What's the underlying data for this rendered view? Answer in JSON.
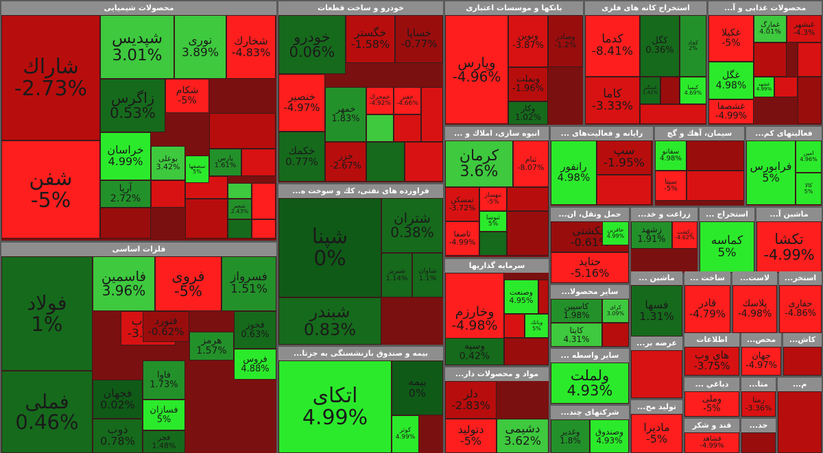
{
  "chart_data": {
    "type": "treemap",
    "title": "",
    "sectors": [
      {
        "name": "محصولات شیمیایی",
        "tiles": [
          {
            "symbol": "شاراك",
            "change": -2.73
          },
          {
            "symbol": "شپدیس",
            "change": 3.01
          },
          {
            "symbol": "نوری",
            "change": 3.89
          },
          {
            "symbol": "شخارك",
            "change": -4.83
          },
          {
            "symbol": "شفن",
            "change": -5
          },
          {
            "symbol": "زاگرس",
            "change": 0.53
          },
          {
            "symbol": "شکام",
            "change": -5
          },
          {
            "symbol": "خراسان",
            "change": 4.99
          },
          {
            "symbol": "بوعلی",
            "change": 3.42
          },
          {
            "symbol": "آریا",
            "change": 2.72
          },
          {
            "symbol": "پارس",
            "change": 1.61
          },
          {
            "symbol": "شجم",
            "change": 2.43
          },
          {
            "symbol": "سصفها",
            "change": 5
          }
        ]
      },
      {
        "name": "خودرو و ساخت قطعات",
        "tiles": [
          {
            "symbol": "خودرو",
            "change": 0.06
          },
          {
            "symbol": "خگستر",
            "change": -1.58
          },
          {
            "symbol": "خساپا",
            "change": -0.77
          },
          {
            "symbol": "خنصیر",
            "change": -4.97
          },
          {
            "symbol": "خمهر",
            "change": 1.83
          },
          {
            "symbol": "خمحرك",
            "change": -4.92
          },
          {
            "symbol": "خفنر",
            "change": -4.66
          },
          {
            "symbol": "خکمك",
            "change": 0.77
          },
          {
            "symbol": "خزر",
            "change": -2.67
          }
        ]
      },
      {
        "name": "بانکها و موسسات اعتباری",
        "tiles": [
          {
            "symbol": "وپارس",
            "change": -4.96
          },
          {
            "symbol": "ونوین",
            "change": -3.87
          },
          {
            "symbol": "وصادر",
            "change": -1.2
          },
          {
            "symbol": "وبملت",
            "change": -1.96
          },
          {
            "symbol": "وکار",
            "change": 1.02
          }
        ]
      },
      {
        "name": "استخراج کانه های فلزی",
        "tiles": [
          {
            "symbol": "کدما",
            "change": -8.41
          },
          {
            "symbol": "کگل",
            "change": 0.36
          },
          {
            "symbol": "کچاد",
            "change": 2
          },
          {
            "symbol": "کاما",
            "change": -3.33
          },
          {
            "symbol": "کمنگنز",
            "change": 1.42
          },
          {
            "symbol": "کیمیا",
            "change": 4.69
          }
        ]
      },
      {
        "name": "محصولات غذایی و آ...",
        "tiles": [
          {
            "symbol": "غکیلا",
            "change": -5
          },
          {
            "symbol": "غمارگ",
            "change": 4.01
          },
          {
            "symbol": "غبشهر",
            "change": -4.3
          },
          {
            "symbol": "غگل",
            "change": 4.98
          },
          {
            "symbol": "غشهد",
            "change": 4.99
          },
          {
            "symbol": "غشصفا",
            "change": -4.99
          }
        ]
      },
      {
        "name": "انبوه سازی، املاك و ...",
        "tiles": [
          {
            "symbol": "کرمان",
            "change": 3.6
          },
          {
            "symbol": "ثنام",
            "change": -8.07
          },
          {
            "symbol": "ثمسکن",
            "change": -3.72
          },
          {
            "symbol": "ثبهساز",
            "change": -5
          },
          {
            "symbol": "ثنوسا",
            "change": 5
          },
          {
            "symbol": "ثاصفا",
            "change": -4.99
          }
        ]
      },
      {
        "name": "رایانه و فعالیت‌های ...",
        "tiles": [
          {
            "symbol": "رانفور",
            "change": 4.98
          },
          {
            "symbol": "سپ",
            "change": -1.95
          }
        ]
      },
      {
        "name": "سیمان، آهك و گچ",
        "tiles": [
          {
            "symbol": "سفانو",
            "change": 4.98
          },
          {
            "symbol": "سیتا",
            "change": -5
          }
        ]
      },
      {
        "name": "فعالیتهای کم...",
        "tiles": [
          {
            "symbol": "فرابورس",
            "change": 5
          },
          {
            "symbol": "امین",
            "change": 4.96
          },
          {
            "symbol": "کالا",
            "change": 5
          }
        ]
      },
      {
        "name": "فلزات اساسی",
        "tiles": [
          {
            "symbol": "فولاد",
            "change": 1
          },
          {
            "symbol": "فاسمین",
            "change": 3.96
          },
          {
            "symbol": "فروی",
            "change": -5
          },
          {
            "symbol": "فسرواز",
            "change": 1.51
          },
          {
            "symbol": "فسرب",
            "change": -3.97
          },
          {
            "symbol": "فخوز",
            "change": 0.63
          },
          {
            "symbol": "فنورد",
            "change": -0.62
          },
          {
            "symbol": "هرمز",
            "change": 1.57
          },
          {
            "symbol": "فروس",
            "change": 4.88
          },
          {
            "symbol": "فملی",
            "change": 0.46
          },
          {
            "symbol": "فجهان",
            "change": 0.02
          },
          {
            "symbol": "فاوا",
            "change": 1.73
          },
          {
            "symbol": "فسازان",
            "change": 5
          },
          {
            "symbol": "ذوب",
            "change": 0.78
          },
          {
            "symbol": "فجر",
            "change": 1.48
          }
        ]
      },
      {
        "name": "فراورده های نفتی، کك و سوخت ه...",
        "tiles": [
          {
            "symbol": "شپنا",
            "change": 0
          },
          {
            "symbol": "شتران",
            "change": 0.38
          },
          {
            "symbol": "شبریز",
            "change": 1.14
          },
          {
            "symbol": "شاوان",
            "change": 1.1
          },
          {
            "symbol": "شبندر",
            "change": 0.83
          }
        ]
      },
      {
        "name": "بیمه و صندوق بازنشستگی به جزتا...",
        "tiles": [
          {
            "symbol": "اتکای",
            "change": 4.99
          },
          {
            "symbol": "بیمه",
            "change": 0
          },
          {
            "symbol": "کوثر",
            "change": 4.99
          }
        ]
      },
      {
        "name": "سرمایه گذاریها",
        "tiles": [
          {
            "symbol": "وخارزم",
            "change": -4.98
          },
          {
            "symbol": "وصنعت",
            "change": 4.95
          },
          {
            "symbol": "وبانك",
            "change": 5
          },
          {
            "symbol": "وسپه",
            "change": 0.42
          }
        ]
      },
      {
        "name": "مواد و محصولات دار...",
        "tiles": [
          {
            "symbol": "دلر",
            "change": -2.83
          },
          {
            "symbol": "دتولید",
            "change": -5
          },
          {
            "symbol": "دشیمی",
            "change": 3.62
          }
        ]
      },
      {
        "name": "حمل ونقل، ان...",
        "tiles": [
          {
            "symbol": "حکشتی",
            "change": -0.61
          },
          {
            "symbol": "حتاید",
            "change": -5.16
          },
          {
            "symbol": "حافرین",
            "change": 4.99
          }
        ]
      },
      {
        "name": "سایر محصولا...",
        "tiles": [
          {
            "symbol": "کاسپین",
            "change": 1.98
          },
          {
            "symbol": "کایتا",
            "change": 4.31
          },
          {
            "symbol": "کرای",
            "change": 3.09
          }
        ]
      },
      {
        "name": "سایر واسطه ...",
        "tiles": [
          {
            "symbol": "ولملت",
            "change": 4.93
          }
        ]
      },
      {
        "name": "شرکتهای چند...",
        "tiles": [
          {
            "symbol": "وغدیر",
            "change": 1.8
          },
          {
            "symbol": "وصندوق",
            "change": 4.93
          }
        ]
      },
      {
        "name": "زراعت و خد...",
        "tiles": [
          {
            "symbol": "زشهد",
            "change": 1.91
          },
          {
            "symbol": "زکشت",
            "change": -4.62
          }
        ]
      },
      {
        "name": "استخراج ...",
        "tiles": [
          {
            "symbol": "کماسه",
            "change": 5
          }
        ]
      },
      {
        "name": "ماشین آ...",
        "tiles": [
          {
            "symbol": "تکشا",
            "change": -4.99
          }
        ]
      },
      {
        "name": "ماشین ...",
        "tiles": [
          {
            "symbol": "فسها",
            "change": 1.31
          }
        ]
      },
      {
        "name": "ساخت ...",
        "tiles": [
          {
            "symbol": "قادر",
            "change": -4.79
          }
        ]
      },
      {
        "name": "لاست...",
        "tiles": [
          {
            "symbol": "پلاسك",
            "change": -4.98
          }
        ]
      },
      {
        "name": "استخر...",
        "tiles": [
          {
            "symbol": "حفاری",
            "change": -4.86
          }
        ]
      },
      {
        "name": "عرضه بر...",
        "tiles": []
      },
      {
        "name": "اطلاعات",
        "tiles": [
          {
            "symbol": "هاي وب",
            "change": -3.75
          }
        ]
      },
      {
        "name": "محص...",
        "tiles": [
          {
            "symbol": "جهان",
            "change": -4.97
          }
        ]
      },
      {
        "name": "کاش...",
        "tiles": []
      },
      {
        "name": "تولید مح...",
        "tiles": [
          {
            "symbol": "مادیرا",
            "change": -5
          }
        ]
      },
      {
        "name": "دباغي ...",
        "tiles": [
          {
            "symbol": "وملی",
            "change": -5
          }
        ]
      },
      {
        "name": "متا...",
        "tiles": [
          {
            "symbol": "رمتا",
            "change": -3.36
          }
        ]
      },
      {
        "name": "قند و شکر",
        "tiles": [
          {
            "symbol": "قشاهد",
            "change": -4.99
          }
        ]
      },
      {
        "name": "خد...",
        "tiles": []
      },
      {
        "name": "م...",
        "tiles": []
      }
    ]
  }
}
